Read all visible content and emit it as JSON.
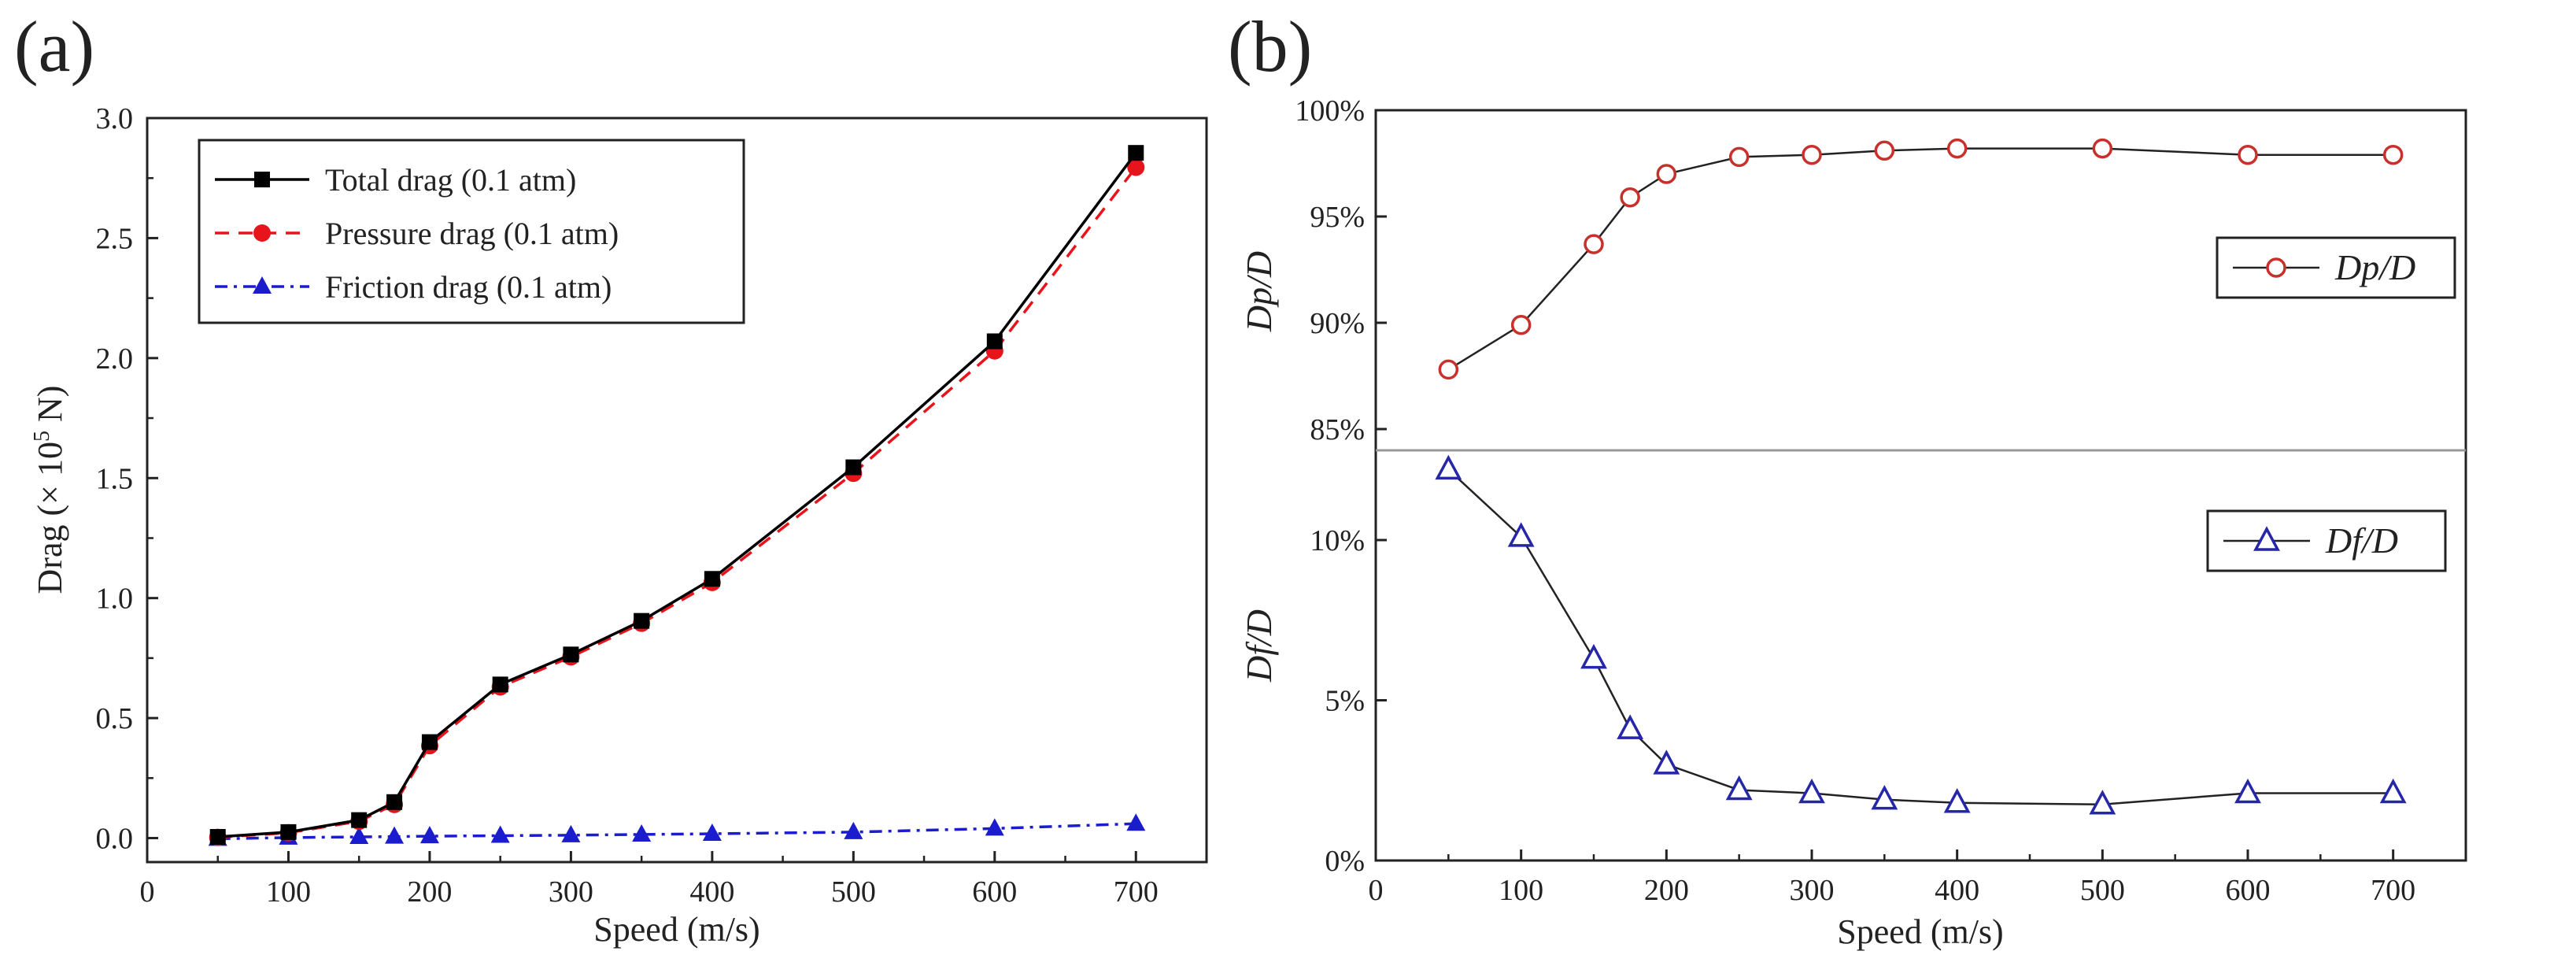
{
  "chart_data": [
    {
      "type": "line",
      "panel_label": "(a)",
      "title": "",
      "xlabel": "Speed (m/s)",
      "ylabel_parts": [
        "Drag (× 10",
        "5",
        " N)"
      ],
      "xlim": [
        0,
        750
      ],
      "ylim": [
        -0.1,
        3.0
      ],
      "xticks": [
        "0",
        "100",
        "200",
        "300",
        "400",
        "500",
        "600",
        "700"
      ],
      "yticks": [
        "0.0",
        "0.5",
        "1.0",
        "1.5",
        "2.0",
        "2.5",
        "3.0"
      ],
      "x": [
        50,
        100,
        150,
        175,
        200,
        250,
        300,
        350,
        400,
        500,
        600,
        700
      ],
      "legend_position": "top-left",
      "series": [
        {
          "name": "Total drag (0.1 atm)",
          "color": "#000000",
          "marker": "square",
          "line": "solid",
          "values": [
            0.005,
            0.025,
            0.075,
            0.15,
            0.4,
            0.64,
            0.765,
            0.905,
            1.08,
            1.545,
            2.07,
            2.855
          ]
        },
        {
          "name": "Pressure drag (0.1 atm)",
          "color": "#e8141b",
          "marker": "circle",
          "line": "dashed",
          "values": [
            0.003,
            0.022,
            0.07,
            0.14,
            0.385,
            0.63,
            0.755,
            0.895,
            1.065,
            1.52,
            2.03,
            2.795
          ]
        },
        {
          "name": "Friction drag (0.1 atm)",
          "color": "#1c1ccf",
          "marker": "triangle",
          "line": "dashdot",
          "values": [
            -0.003,
            0.002,
            0.005,
            0.006,
            0.008,
            0.01,
            0.012,
            0.015,
            0.018,
            0.025,
            0.04,
            0.06
          ]
        }
      ]
    },
    {
      "type": "line",
      "panel_label": "(b)",
      "title": "",
      "xlabel": "Speed (m/s)",
      "xlim": [
        0,
        750
      ],
      "xticks": [
        "0",
        "100",
        "200",
        "300",
        "400",
        "500",
        "600",
        "700"
      ],
      "x": [
        50,
        100,
        150,
        175,
        200,
        250,
        300,
        350,
        400,
        500,
        600,
        700
      ],
      "subplots": [
        {
          "ylabel": "Dp/D",
          "ylim": [
            84,
            100
          ],
          "yticks": [
            "85%",
            "90%",
            "95%",
            "100%"
          ],
          "legend_position": "right",
          "series": [
            {
              "name": "Dp/D",
              "color": "#c8302b",
              "marker": "open-circle",
              "values": [
                87.8,
                89.9,
                93.7,
                95.9,
                97.0,
                97.8,
                97.9,
                98.1,
                98.2,
                98.2,
                97.9,
                97.9
              ]
            }
          ]
        },
        {
          "ylabel": "Df/D",
          "ylim": [
            0,
            12.8
          ],
          "yticks": [
            "0%",
            "5%",
            "10%"
          ],
          "legend_position": "right",
          "series": [
            {
              "name": "Df/D",
              "color": "#2626a8",
              "marker": "open-triangle",
              "values": [
                12.2,
                10.1,
                6.3,
                4.1,
                3.0,
                2.2,
                2.1,
                1.9,
                1.8,
                1.75,
                2.1,
                2.1
              ]
            }
          ]
        }
      ]
    }
  ]
}
